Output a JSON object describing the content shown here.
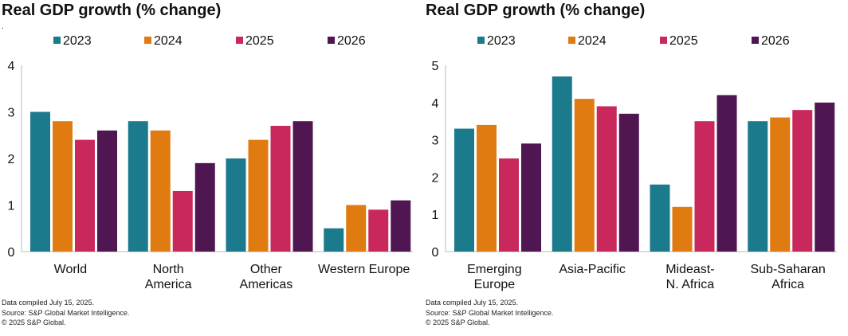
{
  "colors": {
    "2023": "#1b7a8c",
    "2024": "#e07b12",
    "2025": "#c9285c",
    "2026": "#4f1652"
  },
  "chart_data": [
    {
      "type": "bar",
      "title": "Real GDP growth (% change)",
      "note_mark": ".",
      "categories": [
        [
          "World"
        ],
        [
          "North",
          "America"
        ],
        [
          "Other",
          "Americas"
        ],
        [
          "Western Europe"
        ]
      ],
      "series": [
        {
          "name": "2023",
          "values": [
            3.0,
            2.8,
            2.0,
            0.5
          ]
        },
        {
          "name": "2024",
          "values": [
            2.8,
            2.6,
            2.4,
            1.0
          ]
        },
        {
          "name": "2025",
          "values": [
            2.4,
            1.3,
            2.7,
            0.9
          ]
        },
        {
          "name": "2026",
          "values": [
            2.6,
            1.9,
            2.8,
            1.1
          ]
        }
      ],
      "ylim": [
        0,
        4
      ],
      "yticks": [
        "0",
        "1",
        "2",
        "3",
        "4"
      ],
      "legend": "top",
      "grid": false,
      "footnotes": [
        "Data compiled July 15, 2025.",
        "Source: S&P Global Market Intelligence.",
        "© 2025 S&P Global."
      ]
    },
    {
      "type": "bar",
      "title": "Real GDP growth (% change)",
      "categories": [
        [
          "Emerging",
          "Europe"
        ],
        [
          "Asia-Pacific"
        ],
        [
          "Mideast-",
          "N. Africa"
        ],
        [
          "Sub-Saharan",
          "Africa"
        ]
      ],
      "series": [
        {
          "name": "2023",
          "values": [
            3.3,
            4.7,
            1.8,
            3.5
          ]
        },
        {
          "name": "2024",
          "values": [
            3.4,
            4.1,
            1.2,
            3.6
          ]
        },
        {
          "name": "2025",
          "values": [
            2.5,
            3.9,
            3.5,
            3.8
          ]
        },
        {
          "name": "2026",
          "values": [
            2.9,
            3.7,
            4.2,
            4.0
          ]
        }
      ],
      "ylim": [
        0,
        5
      ],
      "yticks": [
        "0",
        "1",
        "2",
        "3",
        "4",
        "5"
      ],
      "legend": "top",
      "grid": false,
      "footnotes": [
        "Data compiled July 15, 2025.",
        "Source: S&P Global Market Intelligence.",
        "© 2025 S&P Global."
      ]
    }
  ]
}
